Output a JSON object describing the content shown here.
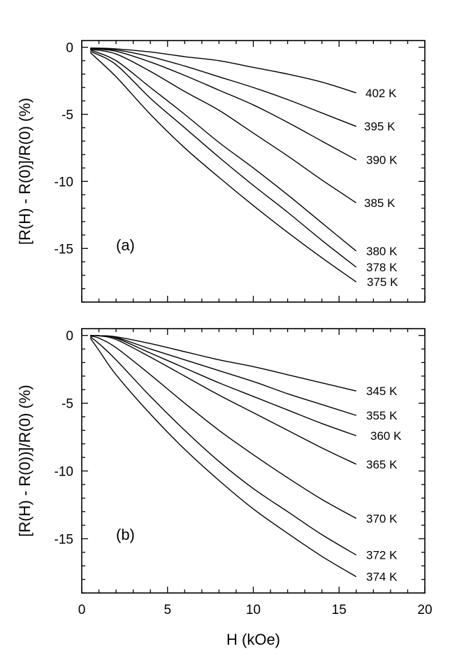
{
  "chart_data": [
    {
      "type": "line",
      "panel": "(a)",
      "ylabel": "[R(H) - R(0)]/R(0) (%)",
      "xlabel": "",
      "xlim": [
        0,
        20
      ],
      "ylim": [
        -19,
        0.5
      ],
      "x_ticks": [
        0,
        5,
        10,
        15,
        20
      ],
      "y_ticks": [
        0,
        -5,
        -10,
        -15
      ],
      "y_tick_labels": [
        "0",
        "-5",
        "-10",
        "-15"
      ],
      "series": [
        {
          "name": "402 K",
          "x": [
            0.5,
            2,
            4,
            6,
            8,
            10,
            12,
            14,
            16
          ],
          "y": [
            -0.05,
            -0.12,
            -0.35,
            -0.7,
            -1.0,
            -1.5,
            -2.0,
            -2.6,
            -3.4
          ]
        },
        {
          "name": "395 K",
          "x": [
            0.5,
            2,
            4,
            6,
            8,
            10,
            12,
            14,
            16
          ],
          "y": [
            -0.1,
            -0.2,
            -0.7,
            -1.4,
            -2.2,
            -3.0,
            -3.9,
            -4.9,
            -5.9
          ]
        },
        {
          "name": "390 K",
          "x": [
            0.5,
            2,
            4,
            6,
            8,
            10,
            12,
            14,
            16
          ],
          "y": [
            -0.1,
            -0.3,
            -1.1,
            -2.1,
            -3.2,
            -4.3,
            -5.6,
            -7.0,
            -8.4
          ]
        },
        {
          "name": "385 K",
          "x": [
            0.5,
            2,
            4,
            6,
            8,
            10,
            12,
            14,
            16
          ],
          "y": [
            -0.15,
            -0.5,
            -1.8,
            -3.3,
            -4.7,
            -6.4,
            -8.1,
            -9.9,
            -11.6
          ]
        },
        {
          "name": "380 K",
          "x": [
            0.5,
            2,
            4,
            6,
            8,
            10,
            12,
            14,
            16
          ],
          "y": [
            -0.2,
            -1.0,
            -3.0,
            -5.0,
            -7.1,
            -9.0,
            -11.0,
            -13.1,
            -15.2
          ]
        },
        {
          "name": "378 K",
          "x": [
            0.5,
            2,
            4,
            6,
            8,
            10,
            12,
            14,
            16
          ],
          "y": [
            -0.3,
            -1.3,
            -3.8,
            -6.0,
            -8.2,
            -10.3,
            -12.3,
            -14.4,
            -16.4
          ]
        },
        {
          "name": "375 K",
          "x": [
            0.5,
            2,
            4,
            6,
            8,
            10,
            12,
            14,
            16
          ],
          "y": [
            -0.4,
            -2.2,
            -5.0,
            -7.5,
            -9.7,
            -11.8,
            -13.8,
            -15.7,
            -17.5
          ]
        }
      ]
    },
    {
      "type": "line",
      "panel": "(b)",
      "ylabel": "[R(H) - R(0))]/R(0) (%)",
      "xlabel": "H (kOe)",
      "xlim": [
        0,
        20
      ],
      "ylim": [
        -19,
        0.5
      ],
      "x_ticks": [
        0,
        5,
        10,
        15,
        20
      ],
      "x_tick_labels": [
        "0",
        "5",
        "10",
        "15",
        "20"
      ],
      "y_ticks": [
        0,
        -5,
        -10,
        -15
      ],
      "y_tick_labels": [
        "0",
        "-5",
        "-10",
        "-15"
      ],
      "series": [
        {
          "name": "345 K",
          "x": [
            0.5,
            1,
            2,
            4,
            6,
            8,
            10,
            12,
            14,
            16
          ],
          "y": [
            0,
            -0.02,
            -0.1,
            -0.6,
            -1.2,
            -1.8,
            -2.3,
            -2.9,
            -3.5,
            -4.1
          ]
        },
        {
          "name": "355 K",
          "x": [
            0.5,
            1,
            2,
            4,
            6,
            8,
            10,
            12,
            14,
            16
          ],
          "y": [
            0,
            -0.02,
            -0.15,
            -1.0,
            -1.8,
            -2.6,
            -3.4,
            -4.3,
            -5.1,
            -5.9
          ]
        },
        {
          "name": "360 K",
          "x": [
            0.5,
            1,
            2,
            4,
            6,
            8,
            10,
            12,
            14,
            16
          ],
          "y": [
            0,
            -0.02,
            -0.2,
            -1.3,
            -2.4,
            -3.5,
            -4.5,
            -5.5,
            -6.5,
            -7.4
          ]
        },
        {
          "name": "365 K",
          "x": [
            0.5,
            1,
            2,
            4,
            6,
            8,
            10,
            12,
            14,
            16
          ],
          "y": [
            0,
            -0.03,
            -0.3,
            -1.6,
            -3.0,
            -4.4,
            -5.7,
            -7.0,
            -8.3,
            -9.5
          ]
        },
        {
          "name": "370 K",
          "x": [
            0.5,
            1,
            2,
            4,
            6,
            8,
            10,
            12,
            14,
            16
          ],
          "y": [
            -0.05,
            -0.2,
            -0.9,
            -2.9,
            -5.0,
            -7.0,
            -8.8,
            -10.5,
            -12.1,
            -13.5
          ]
        },
        {
          "name": "372 K",
          "x": [
            0.5,
            1,
            2,
            4,
            6,
            8,
            10,
            12,
            14,
            16
          ],
          "y": [
            -0.1,
            -0.6,
            -1.8,
            -4.5,
            -7.0,
            -9.3,
            -11.3,
            -13.0,
            -14.7,
            -16.2
          ]
        },
        {
          "name": "374 K",
          "x": [
            0.5,
            1,
            2,
            4,
            6,
            8,
            10,
            12,
            14,
            16
          ],
          "y": [
            -0.2,
            -1.1,
            -2.9,
            -5.8,
            -8.4,
            -10.7,
            -12.8,
            -14.6,
            -16.3,
            -17.8
          ]
        }
      ]
    }
  ]
}
